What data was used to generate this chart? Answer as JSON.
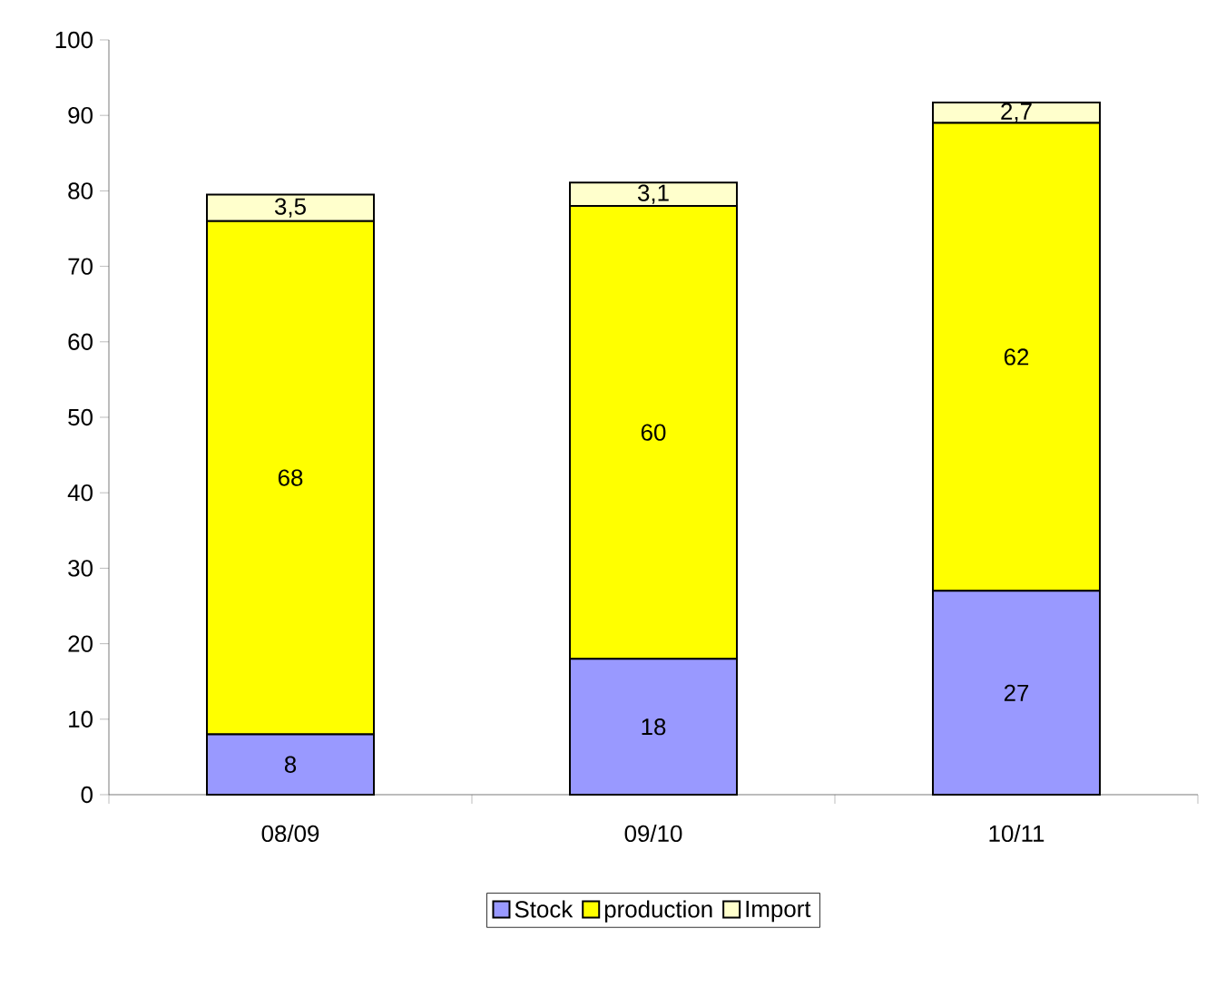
{
  "chart_data": {
    "type": "bar",
    "stacked": true,
    "categories": [
      "08/09",
      "09/10",
      "10/11"
    ],
    "series": [
      {
        "name": "Stock",
        "color": "#9999ff",
        "values": [
          8,
          18,
          27
        ],
        "value_labels": [
          "8",
          "18",
          "27"
        ]
      },
      {
        "name": "production",
        "color": "#ffff00",
        "values": [
          68,
          60,
          62
        ],
        "value_labels": [
          "68",
          "60",
          "62"
        ]
      },
      {
        "name": "Import",
        "color": "#ffffcc",
        "values": [
          3.5,
          3.1,
          2.7
        ],
        "value_labels": [
          "3,5",
          "3,1",
          "2,7"
        ]
      }
    ],
    "ylim": [
      0,
      100
    ],
    "yticks": [
      0,
      10,
      20,
      30,
      40,
      50,
      60,
      70,
      80,
      90,
      100
    ],
    "grid": false,
    "legend": "bottom"
  }
}
